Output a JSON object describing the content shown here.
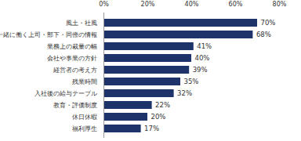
{
  "chart_data": {
    "type": "bar",
    "orientation": "horizontal",
    "categories": [
      "風土・社風",
      "一緒に働く上司・部下・同僚の情報",
      "業務上の裁量の幅",
      "会社や事業の方針",
      "経営者の考え方",
      "残業時間",
      "入社後の給与テーブル",
      "教育・評価制度",
      "休日休暇",
      "福利厚生"
    ],
    "values": [
      70,
      68,
      41,
      40,
      39,
      35,
      32,
      22,
      20,
      17
    ],
    "value_labels": [
      "70%",
      "68%",
      "41%",
      "40%",
      "39%",
      "35%",
      "32%",
      "22%",
      "20%",
      "17%"
    ],
    "data_labels": true,
    "color": "#1f336b",
    "xlim": [
      0,
      80
    ],
    "xticks": [
      {
        "value": 0,
        "label": "0%"
      },
      {
        "value": 20,
        "label": "20%"
      },
      {
        "value": 40,
        "label": "40%"
      },
      {
        "value": 60,
        "label": "60%"
      },
      {
        "value": 80,
        "label": "80%"
      }
    ],
    "grid": false
  }
}
